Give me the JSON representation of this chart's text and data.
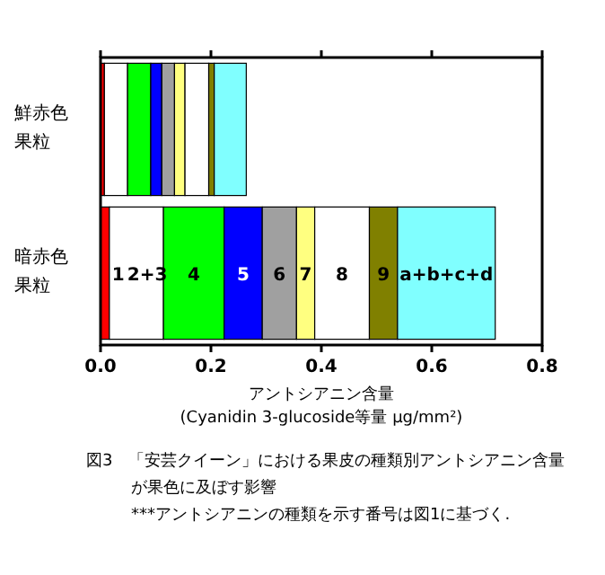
{
  "chart_data": {
    "type": "bar",
    "orientation": "horizontal",
    "stacked": true,
    "categories": [
      "鮮赤色果粒",
      "暗赤色果粒"
    ],
    "series": [
      {
        "name": "1",
        "color": "#ff0000",
        "values": [
          0.007,
          0.016
        ]
      },
      {
        "name": "2+3",
        "color": "#ffffff",
        "values": [
          0.042,
          0.098
        ]
      },
      {
        "name": "4",
        "color": "#00ff00",
        "values": [
          0.042,
          0.11
        ]
      },
      {
        "name": "5",
        "color": "#0000ff",
        "values": [
          0.02,
          0.069
        ]
      },
      {
        "name": "6",
        "color": "#a0a0a0",
        "values": [
          0.023,
          0.062
        ]
      },
      {
        "name": "7",
        "color": "#ffff80",
        "values": [
          0.019,
          0.033
        ]
      },
      {
        "name": "8",
        "color": "#ffffff",
        "values": [
          0.043,
          0.099
        ]
      },
      {
        "name": "9",
        "color": "#808000",
        "values": [
          0.01,
          0.051
        ]
      },
      {
        "name": "a+b+c+d",
        "color": "#80ffff",
        "values": [
          0.058,
          0.177
        ]
      }
    ],
    "xlim": [
      0,
      0.8
    ],
    "xticks": [
      {
        "value": 0,
        "label": "0.0"
      },
      {
        "value": 0.2,
        "label": "0.2"
      },
      {
        "value": 0.4,
        "label": "0.4"
      },
      {
        "value": 0.6,
        "label": "0.6"
      },
      {
        "value": 0.8,
        "label": "0.8"
      }
    ],
    "xlabel": "アントシアニン含量\n(Cyanidin 3-glucoside等量 μg/mm²)",
    "grid": false,
    "legend": false,
    "annotations": [
      "図3　「安芸クイーン」における果皮の種類別アントシアニン含量が果色に及ぼす影響",
      "***アントシアニンの種類を示す番号は図1に基づく."
    ]
  }
}
